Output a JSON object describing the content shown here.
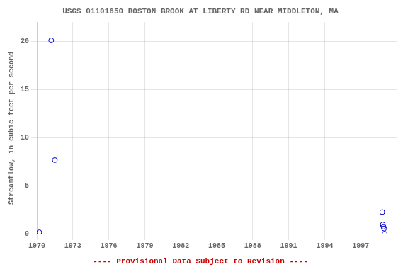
{
  "chart_data": {
    "type": "scatter",
    "title": "USGS 01101650 BOSTON BROOK AT LIBERTY RD NEAR MIDDLETON, MA",
    "ylabel": "Streamflow, in cubic feet per second",
    "annotations": [
      {
        "text": "---- Provisional Data Subject to Revision ----",
        "color": "#cc0000"
      }
    ],
    "x": [
      1971.2,
      1971.5,
      1970.2,
      1998.8,
      1998.85,
      1998.9,
      1998.95,
      1999.0
    ],
    "values": [
      20.1,
      7.7,
      0.2,
      2.3,
      1.0,
      0.8,
      0.6,
      0.05
    ],
    "color": "#0000cc",
    "marker": "o",
    "xlim": [
      1970,
      2000
    ],
    "ylim": [
      0,
      22
    ],
    "xticks": [
      1970,
      1973,
      1976,
      1979,
      1982,
      1985,
      1988,
      1991,
      1994,
      1997
    ],
    "yticks": [
      0,
      5,
      10,
      15,
      20
    ],
    "grid": true
  }
}
